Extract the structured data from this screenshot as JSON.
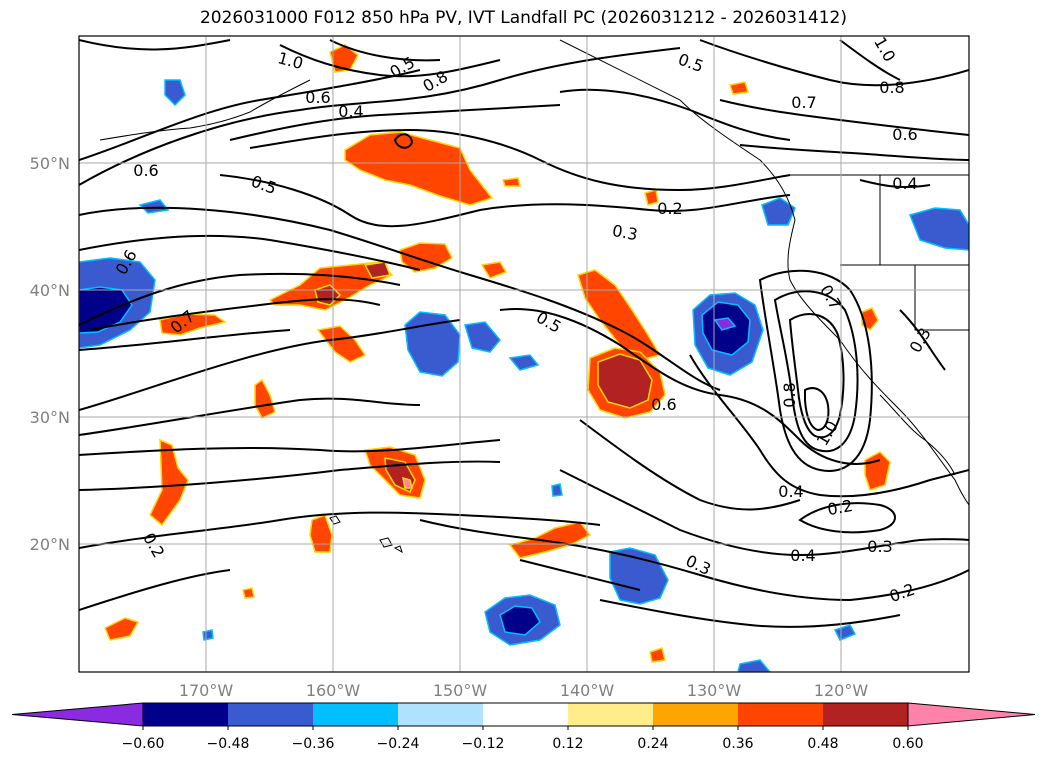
{
  "title": "2026031000 F012 850 hPa PV, IVT Landfall PC (2026031212 - 2026031412)",
  "map": {
    "lat_labels": [
      "50°N",
      "40°N",
      "30°N",
      "20°N"
    ],
    "lon_labels": [
      "170°W",
      "160°W",
      "150°W",
      "140°W",
      "130°W",
      "120°W"
    ],
    "gridline_color": "#a9a9a9"
  },
  "pv_contour_labels": [
    "1.0",
    "0.5",
    "0.8",
    "0.6",
    "0.4",
    "0.5",
    "0.7",
    "0.8",
    "0.6",
    "0.6",
    "0.5",
    "0.2",
    "0.3",
    "0.4",
    "0.6",
    "0.7",
    "0.5",
    "0.7",
    "0.6",
    "0.8",
    "0.3",
    "1.0",
    "0.4",
    "0.2",
    "0.3",
    "0.4",
    "0.2",
    "0.3",
    "0.2",
    "1.0"
  ],
  "colorbar": {
    "colors": [
      "#8a2be2",
      "#00008b",
      "#3a5bd0",
      "#00bfff",
      "#b0e2ff",
      "#ffffff",
      "#ffec8b",
      "#ffa500",
      "#ff4500",
      "#b22222",
      "#ff82ab"
    ],
    "tick_labels": [
      "−0.60",
      "−0.48",
      "−0.36",
      "−0.24",
      "−0.12",
      "0.12",
      "0.24",
      "0.36",
      "0.48",
      "0.60"
    ]
  }
}
